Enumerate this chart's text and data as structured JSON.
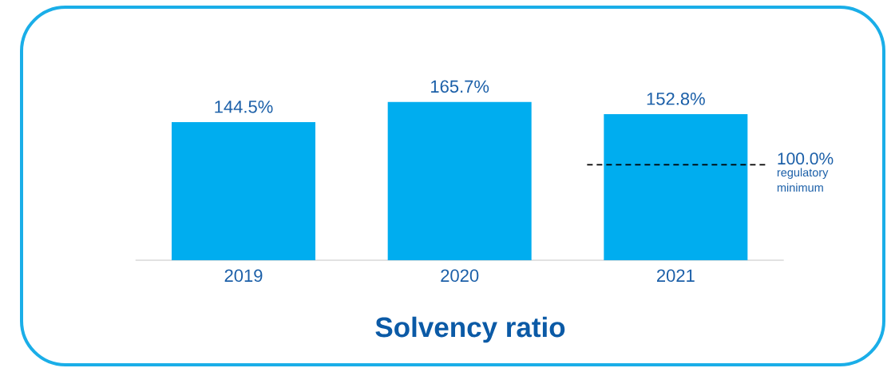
{
  "chart_data": {
    "type": "bar",
    "title": "Solvency ratio",
    "categories": [
      "2019",
      "2020",
      "2021"
    ],
    "values": [
      144.5,
      165.7,
      152.8
    ],
    "color": "#00adef",
    "value_labels": [
      "144.5%",
      "165.7%",
      "152.8%"
    ],
    "ref_lines": [
      {
        "axis": "y",
        "value": 100,
        "label": "100.0%",
        "color": "#000000",
        "line_style": "dashed"
      }
    ],
    "annotations": [
      "regulatory minimum"
    ]
  }
}
